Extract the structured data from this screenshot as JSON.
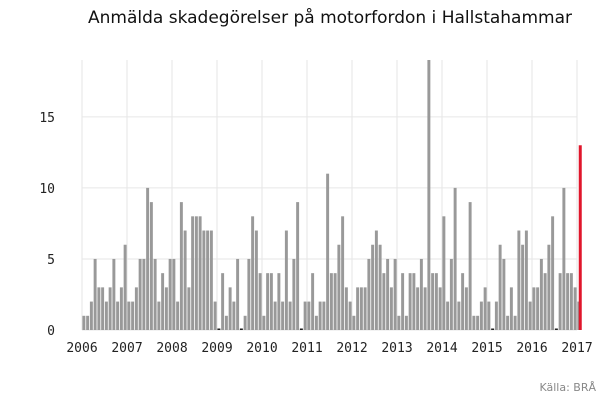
{
  "chart_data": {
    "type": "bar",
    "title": "Anmälda skadegörelser på motorfordon i Hallstahammar",
    "source": "Källa: BRÅ",
    "xlabel": "",
    "ylabel": "",
    "x_start": "2006-01",
    "x_end": "2017-01",
    "xticks": [
      "2006",
      "2007",
      "2008",
      "2009",
      "2010",
      "2011",
      "2012",
      "2013",
      "2014",
      "2015",
      "2016",
      "2017"
    ],
    "yticks": [
      0,
      5,
      10,
      15
    ],
    "ylim": [
      0,
      19
    ],
    "grid": true,
    "colors": {
      "bar": "#999999",
      "highlight": "#e0162b",
      "grid": "#e6e6e6"
    },
    "highlight_last": true,
    "values": [
      1,
      1,
      2,
      5,
      3,
      3,
      2,
      3,
      5,
      2,
      3,
      6,
      2,
      2,
      3,
      5,
      5,
      10,
      9,
      5,
      2,
      4,
      3,
      5,
      5,
      2,
      9,
      7,
      3,
      8,
      8,
      8,
      7,
      7,
      7,
      2,
      0,
      4,
      1,
      3,
      2,
      5,
      0,
      1,
      5,
      8,
      7,
      4,
      1,
      4,
      4,
      2,
      4,
      2,
      7,
      2,
      5,
      9,
      0,
      2,
      2,
      4,
      1,
      2,
      2,
      11,
      4,
      4,
      6,
      8,
      3,
      2,
      1,
      3,
      3,
      3,
      5,
      6,
      7,
      6,
      4,
      5,
      3,
      5,
      1,
      4,
      1,
      4,
      4,
      3,
      5,
      3,
      19,
      4,
      4,
      3,
      8,
      2,
      5,
      10,
      2,
      4,
      3,
      9,
      1,
      1,
      2,
      3,
      2,
      0,
      2,
      6,
      5,
      1,
      3,
      1,
      7,
      6,
      7,
      2,
      3,
      3,
      5,
      4,
      6,
      8,
      0,
      4,
      10,
      4,
      4,
      3,
      2,
      13
    ]
  }
}
